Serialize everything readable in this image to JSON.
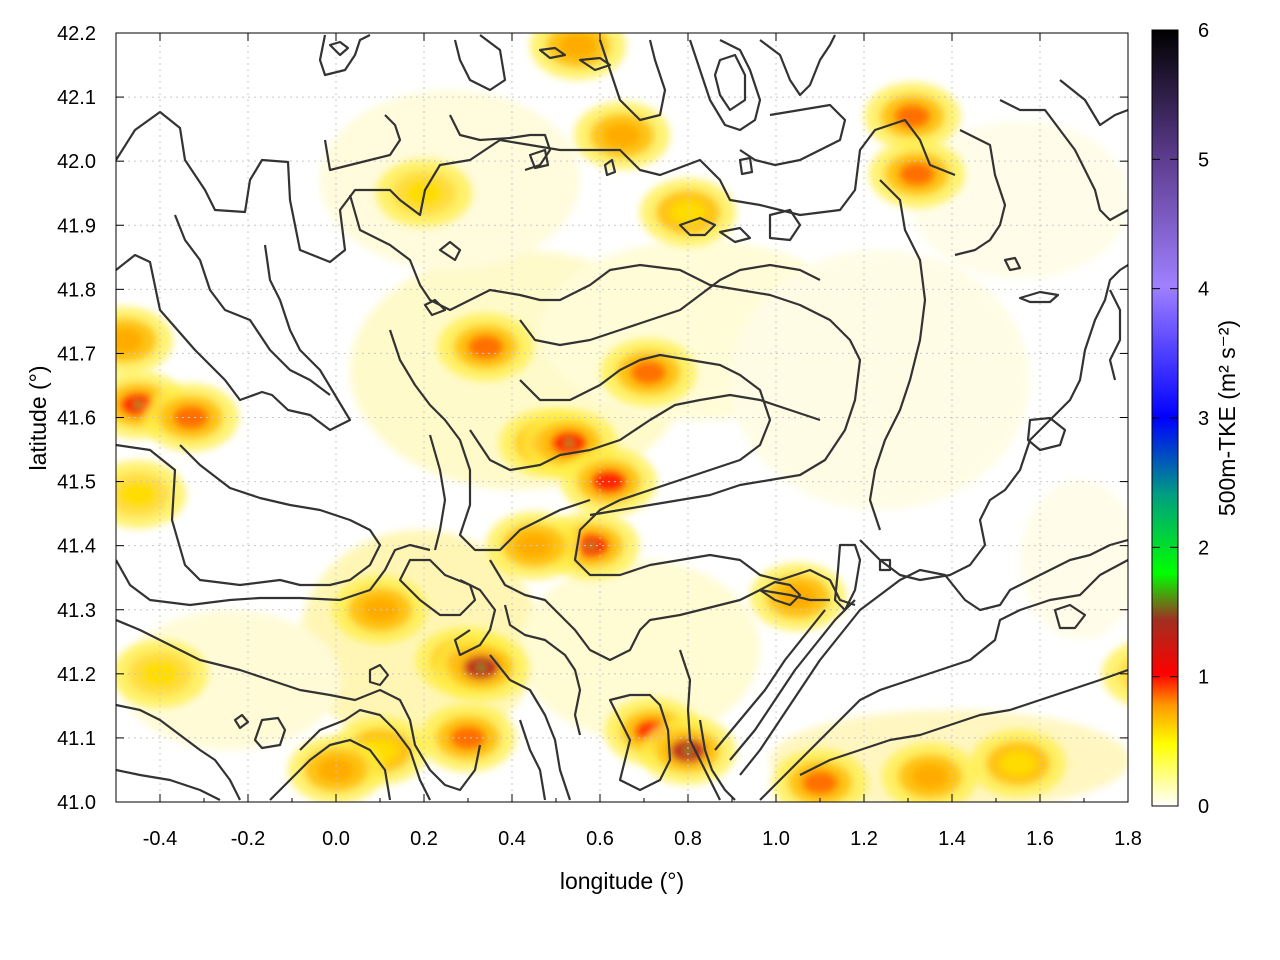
{
  "chart_data": {
    "type": "heatmap",
    "title": "",
    "xlabel": "longitude (°)",
    "ylabel": "latitude (°)",
    "colorbar_label": "500m-TKE (m² s⁻²)",
    "xlim": [
      -0.5,
      1.8
    ],
    "ylim": [
      41.0,
      42.2
    ],
    "colorbar_range": [
      0,
      6
    ],
    "x_ticks": [
      -0.4,
      -0.2,
      0.0,
      0.2,
      0.4,
      0.6,
      0.8,
      1.0,
      1.2,
      1.4,
      1.6,
      1.8
    ],
    "x_tick_labels": [
      "-0.4",
      "-0.2",
      "0.0",
      "0.2",
      "0.4",
      "0.6",
      "0.8",
      "1.0",
      "1.2",
      "1.4",
      "1.6",
      "1.8"
    ],
    "y_ticks": [
      41.0,
      41.1,
      41.2,
      41.3,
      41.4,
      41.5,
      41.6,
      41.7,
      41.8,
      41.9,
      42.0,
      42.1,
      42.2
    ],
    "y_tick_labels": [
      "41.0",
      "41.1",
      "41.2",
      "41.3",
      "41.4",
      "41.5",
      "41.6",
      "41.7",
      "41.8",
      "41.9",
      "42.0",
      "42.1",
      "42.2"
    ],
    "colorbar_ticks": [
      0,
      1,
      2,
      3,
      4,
      5,
      6
    ],
    "colorbar_tick_labels": [
      "0",
      "1",
      "2",
      "3",
      "4",
      "5",
      "6"
    ],
    "colormap": [
      "#ffffff",
      "#ffff00",
      "#ff8000",
      "#ff0000",
      "#a02020",
      "#00ff00",
      "#0000ff",
      "#9f7fff",
      "#5a3a8a",
      "#000000"
    ],
    "grid": true,
    "contour_color": "#333333",
    "tke_hotspots": [
      {
        "lon": -0.45,
        "lat": 41.62,
        "value": 1.3
      },
      {
        "lon": -0.33,
        "lat": 41.6,
        "value": 0.9
      },
      {
        "lon": -0.48,
        "lat": 41.72,
        "value": 0.7
      },
      {
        "lon": 0.34,
        "lat": 41.71,
        "value": 0.8
      },
      {
        "lon": 0.48,
        "lat": 41.56,
        "value": 0.9
      },
      {
        "lon": 0.53,
        "lat": 41.56,
        "value": 1.2
      },
      {
        "lon": 0.62,
        "lat": 41.5,
        "value": 1.1
      },
      {
        "lon": 0.58,
        "lat": 41.4,
        "value": 1.3
      },
      {
        "lon": 0.71,
        "lat": 41.67,
        "value": 0.8
      },
      {
        "lon": 0.29,
        "lat": 41.22,
        "value": 1.2
      },
      {
        "lon": 0.33,
        "lat": 41.21,
        "value": 1.4
      },
      {
        "lon": 0.3,
        "lat": 41.1,
        "value": 0.9
      },
      {
        "lon": 0.72,
        "lat": 41.11,
        "value": 1.1
      },
      {
        "lon": 0.8,
        "lat": 41.08,
        "value": 1.5
      },
      {
        "lon": 1.31,
        "lat": 42.07,
        "value": 1.0
      },
      {
        "lon": 1.32,
        "lat": 41.98,
        "value": 0.8
      },
      {
        "lon": 1.1,
        "lat": 41.03,
        "value": 0.9
      },
      {
        "lon": 1.35,
        "lat": 41.04,
        "value": 0.7
      },
      {
        "lon": 1.55,
        "lat": 41.06,
        "value": 0.5
      },
      {
        "lon": 1.05,
        "lat": 41.32,
        "value": 0.7
      },
      {
        "lon": 0.1,
        "lat": 41.3,
        "value": 0.6
      },
      {
        "lon": 0.1,
        "lat": 41.08,
        "value": 0.5
      },
      {
        "lon": 0.0,
        "lat": 41.05,
        "value": 0.6
      },
      {
        "lon": 0.55,
        "lat": 42.18,
        "value": 0.7
      },
      {
        "lon": 0.65,
        "lat": 42.04,
        "value": 0.6
      },
      {
        "lon": 0.8,
        "lat": 41.92,
        "value": 0.5
      },
      {
        "lon": 0.2,
        "lat": 41.95,
        "value": 0.4
      },
      {
        "lon": -0.45,
        "lat": 41.48,
        "value": 0.4
      },
      {
        "lon": 0.45,
        "lat": 41.4,
        "value": 0.6
      },
      {
        "lon": -0.4,
        "lat": 41.2,
        "value": 0.4
      },
      {
        "lon": 1.85,
        "lat": 41.2,
        "value": 0.3
      }
    ]
  }
}
